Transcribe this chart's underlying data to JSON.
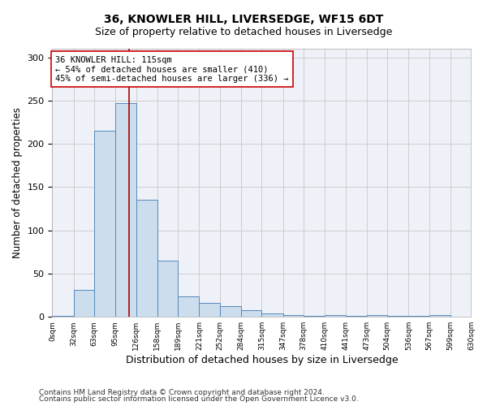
{
  "title1": "36, KNOWLER HILL, LIVERSEDGE, WF15 6DT",
  "title2": "Size of property relative to detached houses in Liversedge",
  "xlabel": "Distribution of detached houses by size in Liversedge",
  "ylabel": "Number of detached properties",
  "bar_edges": [
    0,
    32,
    63,
    95,
    126,
    158,
    189,
    221,
    252,
    284,
    315,
    347,
    378,
    410,
    441,
    473,
    504,
    536,
    567,
    599,
    630
  ],
  "bar_heights": [
    1,
    31,
    215,
    247,
    135,
    65,
    24,
    16,
    12,
    8,
    4,
    2,
    1,
    2,
    1,
    2,
    1,
    1,
    2,
    0
  ],
  "bar_color": "#ccdded",
  "bar_edge_color": "#5588bb",
  "bar_linewidth": 0.7,
  "vline_x": 115,
  "vline_color": "#aa0000",
  "vline_linewidth": 1.2,
  "annotation_text": "36 KNOWLER HILL: 115sqm\n← 54% of detached houses are smaller (410)\n45% of semi-detached houses are larger (336) →",
  "annotation_box_color": "#ffffff",
  "annotation_box_edge": "#cc0000",
  "annotation_fontsize": 7.5,
  "ylim": [
    0,
    310
  ],
  "xlim": [
    0,
    630
  ],
  "yticks": [
    0,
    50,
    100,
    150,
    200,
    250,
    300
  ],
  "xtick_labels": [
    "0sqm",
    "32sqm",
    "63sqm",
    "95sqm",
    "126sqm",
    "158sqm",
    "189sqm",
    "221sqm",
    "252sqm",
    "284sqm",
    "315sqm",
    "347sqm",
    "378sqm",
    "410sqm",
    "441sqm",
    "473sqm",
    "504sqm",
    "536sqm",
    "567sqm",
    "599sqm",
    "630sqm"
  ],
  "xtick_positions": [
    0,
    32,
    63,
    95,
    126,
    158,
    189,
    221,
    252,
    284,
    315,
    347,
    378,
    410,
    441,
    473,
    504,
    536,
    567,
    599,
    630
  ],
  "grid_color": "#cccccc",
  "background_color": "#eef2f8",
  "footer_text1": "Contains HM Land Registry data © Crown copyright and database right 2024.",
  "footer_text2": "Contains public sector information licensed under the Open Government Licence v3.0.",
  "title1_fontsize": 10,
  "title2_fontsize": 9,
  "xlabel_fontsize": 9,
  "ylabel_fontsize": 8.5
}
